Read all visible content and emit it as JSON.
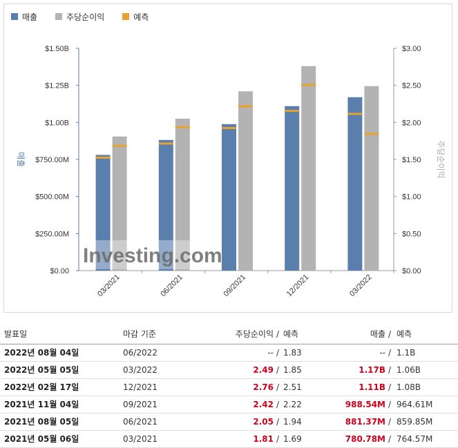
{
  "legend": [
    {
      "label": "매출",
      "color": "#5b7fad"
    },
    {
      "label": "주당순이익",
      "color": "#b3b3b3"
    },
    {
      "label": "예측",
      "color": "#e8a32e"
    }
  ],
  "chart_data": {
    "type": "bar",
    "categories": [
      "03/2021",
      "06/2021",
      "09/2021",
      "12/2021",
      "03/2022"
    ],
    "series": [
      {
        "name": "매출",
        "axis": "left",
        "color": "#5b7fad",
        "values": [
          0.78078,
          0.88137,
          0.98854,
          1.11,
          1.17
        ]
      },
      {
        "name": "주당순이익",
        "axis": "right",
        "color": "#b3b3b3",
        "values": [
          1.81,
          2.05,
          2.42,
          2.76,
          2.49
        ]
      },
      {
        "name": "예측",
        "color": "#e8a32e",
        "revenue_values": [
          0.76457,
          0.85985,
          0.96461,
          1.08,
          1.06
        ],
        "eps_values": [
          1.69,
          1.94,
          2.22,
          2.51,
          1.85
        ]
      }
    ],
    "ylabel_left": "매출",
    "ylabel_right": "주당순이익",
    "ylim_left": [
      0,
      1.5
    ],
    "ylim_right": [
      0,
      3.0
    ],
    "yticks_left": [
      "$0.00",
      "$250.00M",
      "$500.00M",
      "$750.00M",
      "$1.00B",
      "$1.25B",
      "$1.50B"
    ],
    "yticks_right": [
      "$0.00",
      "$0.50",
      "$1.00",
      "$1.50",
      "$2.00",
      "$2.50",
      "$3.00"
    ],
    "grid": false,
    "legend_position": "top-left"
  },
  "watermark": "Investing.com",
  "table": {
    "headers": {
      "date": "발표일",
      "period": "마감 기준",
      "eps": "주당순이익",
      "slash": "/",
      "eps_forecast": "예측",
      "revenue": "매출",
      "revenue_forecast": "예측"
    },
    "rows": [
      {
        "date": "2022년 08월 04일",
        "period": "06/2022",
        "eps": "--",
        "eps_forecast": "1.83",
        "revenue": "--",
        "revenue_forecast": "1.1B",
        "highlight": false
      },
      {
        "date": "2022년 05월 05일",
        "period": "03/2022",
        "eps": "2.49",
        "eps_forecast": "1.85",
        "revenue": "1.17B",
        "revenue_forecast": "1.06B",
        "highlight": true
      },
      {
        "date": "2022년 02월 17일",
        "period": "12/2021",
        "eps": "2.76",
        "eps_forecast": "2.51",
        "revenue": "1.11B",
        "revenue_forecast": "1.08B",
        "highlight": true
      },
      {
        "date": "2021년 11월 04일",
        "period": "09/2021",
        "eps": "2.42",
        "eps_forecast": "2.22",
        "revenue": "988.54M",
        "revenue_forecast": "964.61M",
        "highlight": true
      },
      {
        "date": "2021년 08월 05일",
        "period": "06/2021",
        "eps": "2.05",
        "eps_forecast": "1.94",
        "revenue": "881.37M",
        "revenue_forecast": "859.85M",
        "highlight": true
      },
      {
        "date": "2021년 05월 06일",
        "period": "03/2021",
        "eps": "1.81",
        "eps_forecast": "1.69",
        "revenue": "780.78M",
        "revenue_forecast": "764.57M",
        "highlight": true
      }
    ]
  }
}
